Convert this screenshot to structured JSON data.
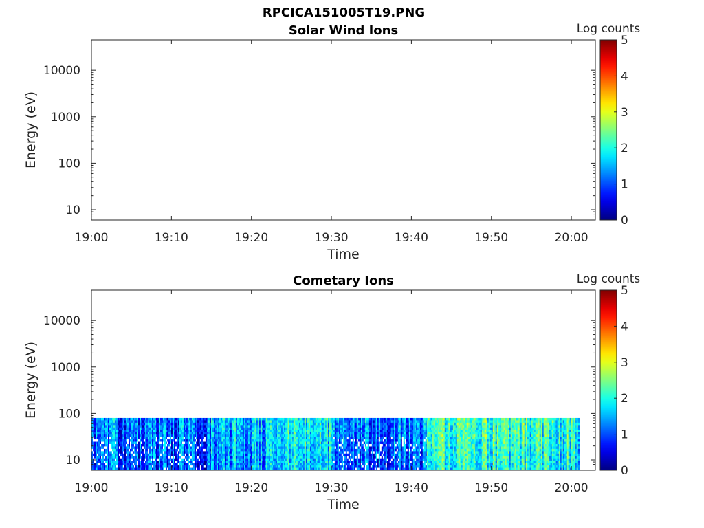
{
  "figure_title": "RPCICA151005T19.PNG",
  "chart_data": [
    {
      "type": "heatmap",
      "title": "Solar Wind Ions",
      "xlabel": "Time",
      "ylabel": "Energy (eV)",
      "x_ticks": [
        "19:00",
        "19:10",
        "19:20",
        "19:30",
        "19:40",
        "19:50",
        "20:00"
      ],
      "xlim": [
        "19:00",
        "20:03"
      ],
      "y_scale": "log",
      "y_ticks": [
        10,
        100,
        1000,
        10000
      ],
      "y_tick_labels": [
        "10",
        "100",
        "1000",
        "10000"
      ],
      "ylim": [
        6,
        45000
      ],
      "colorbar": {
        "label": "Log counts",
        "range": [
          0,
          5
        ],
        "ticks": [
          "0",
          "1",
          "2",
          "3",
          "4",
          "5"
        ],
        "colormap": "jet"
      },
      "data": "no counts recorded"
    },
    {
      "type": "heatmap",
      "title": "Cometary Ions",
      "xlabel": "Time",
      "ylabel": "Energy (eV)",
      "x_ticks": [
        "19:00",
        "19:10",
        "19:20",
        "19:30",
        "19:40",
        "19:50",
        "20:00"
      ],
      "xlim": [
        "19:00",
        "20:03"
      ],
      "y_scale": "log",
      "y_ticks": [
        10,
        100,
        1000,
        10000
      ],
      "y_tick_labels": [
        "10",
        "100",
        "1000",
        "10000"
      ],
      "ylim": [
        6,
        45000
      ],
      "colorbar": {
        "label": "Log counts",
        "range": [
          0,
          5
        ],
        "ticks": [
          "0",
          "1",
          "2",
          "3",
          "4",
          "5"
        ],
        "colormap": "jet"
      },
      "data_coverage": {
        "time_start": "19:00",
        "time_end": "20:01",
        "energy_min_eV": 6,
        "energy_max_eV": 80
      },
      "segments": [
        {
          "start": "19:00",
          "end": "19:15",
          "typical_log_counts": 1.2,
          "max_log_counts": 2.3
        },
        {
          "start": "19:15",
          "end": "19:23",
          "typical_log_counts": 1.6,
          "max_log_counts": 2.8
        },
        {
          "start": "19:23",
          "end": "19:30",
          "typical_log_counts": 1.9,
          "max_log_counts": 3.0
        },
        {
          "start": "19:30",
          "end": "19:42",
          "typical_log_counts": 1.3,
          "max_log_counts": 2.5
        },
        {
          "start": "19:42",
          "end": "19:50",
          "typical_log_counts": 2.2,
          "max_log_counts": 3.1
        },
        {
          "start": "19:50",
          "end": "20:01",
          "typical_log_counts": 2.1,
          "max_log_counts": 3.2
        }
      ]
    }
  ]
}
